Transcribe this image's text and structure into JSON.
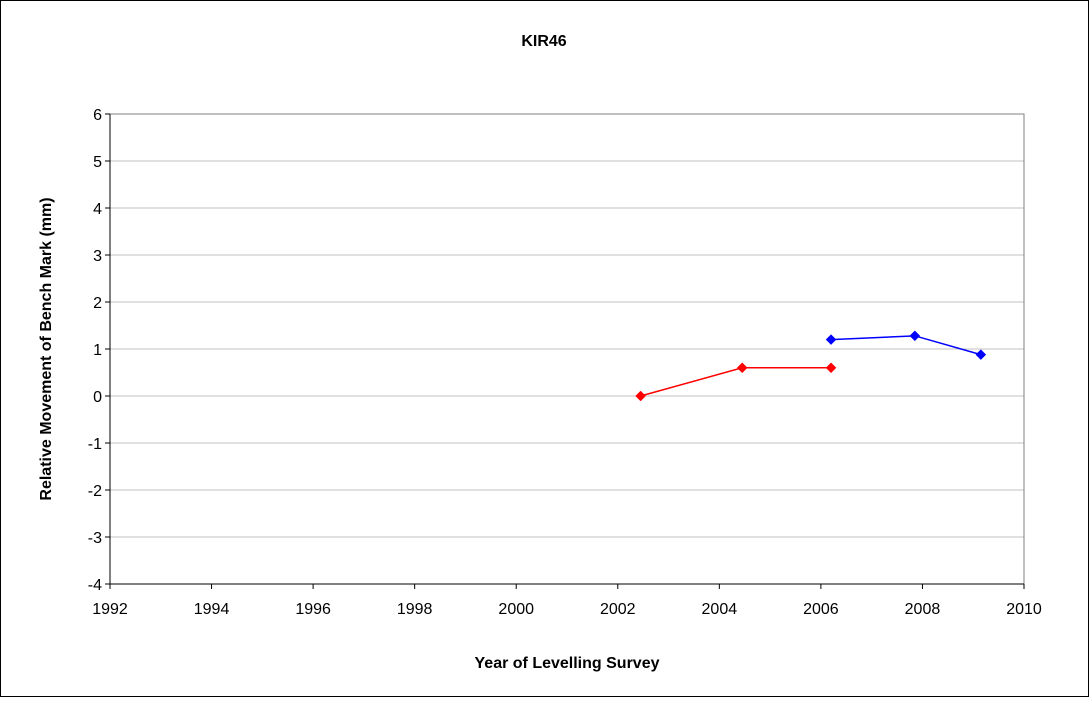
{
  "chart_data": {
    "type": "line",
    "title": "KIR46",
    "xlabel": "Year of Levelling Survey",
    "ylabel": "Relative Movement of Bench Mark (mm)",
    "xlim": [
      1992,
      2010
    ],
    "ylim": [
      -4,
      6
    ],
    "x_ticks": [
      1992,
      1994,
      1996,
      1998,
      2000,
      2002,
      2004,
      2006,
      2008,
      2010
    ],
    "y_ticks": [
      -4,
      -3,
      -2,
      -1,
      0,
      1,
      2,
      3,
      4,
      5,
      6
    ],
    "grid": "horizontal",
    "legend": "none",
    "series": [
      {
        "color": "#ff0000",
        "x": [
          2002.45,
          2004.45,
          2006.2
        ],
        "y": [
          0,
          0.6,
          0.6
        ]
      },
      {
        "color": "#0000ff",
        "x": [
          2006.2,
          2007.85,
          2009.15
        ],
        "y": [
          1.2,
          1.28,
          0.88
        ]
      }
    ]
  }
}
